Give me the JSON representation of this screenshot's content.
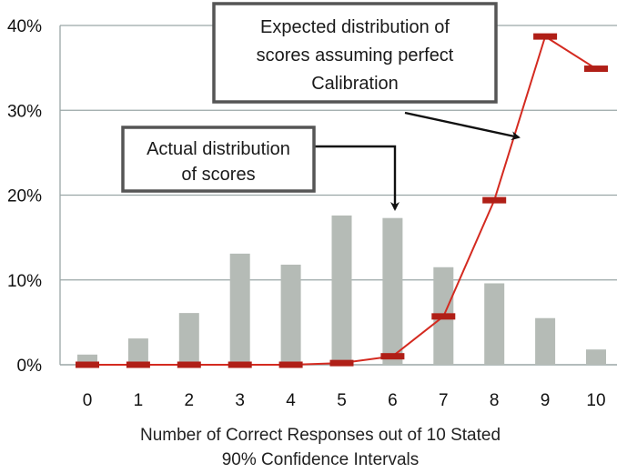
{
  "chart_data": {
    "type": "bar",
    "categories": [
      "0",
      "1",
      "2",
      "3",
      "4",
      "5",
      "6",
      "7",
      "8",
      "9",
      "10"
    ],
    "xlabel_lines": [
      "Number of Correct Responses out of 10 Stated",
      "90% Confidence Intervals"
    ],
    "y_ticks": [
      "0%",
      "10%",
      "20%",
      "30%",
      "40%"
    ],
    "ylim": [
      0,
      40
    ],
    "grid": true,
    "series": [
      {
        "type": "bar",
        "values": [
          1.2,
          3.1,
          6.1,
          13.1,
          11.8,
          17.6,
          17.3,
          11.5,
          9.6,
          5.5,
          1.8
        ]
      },
      {
        "type": "line",
        "values": [
          0,
          0,
          0,
          0,
          0,
          0.2,
          1.0,
          5.7,
          19.4,
          38.7,
          34.9
        ]
      }
    ],
    "annotations": [
      {
        "lines": [
          "Actual distribution",
          "of scores"
        ],
        "points_to_category": "6"
      },
      {
        "lines": [
          "Expected distribution of",
          "scores assuming perfect",
          "Calibration"
        ],
        "points_to_category": "9"
      }
    ],
    "colors": {
      "bar": "#b5bbb6",
      "line": "#d42a20",
      "marker": "#b01f17",
      "grid": "#9aa6a6",
      "box_border": "#555555",
      "arrow": "#111111"
    }
  }
}
